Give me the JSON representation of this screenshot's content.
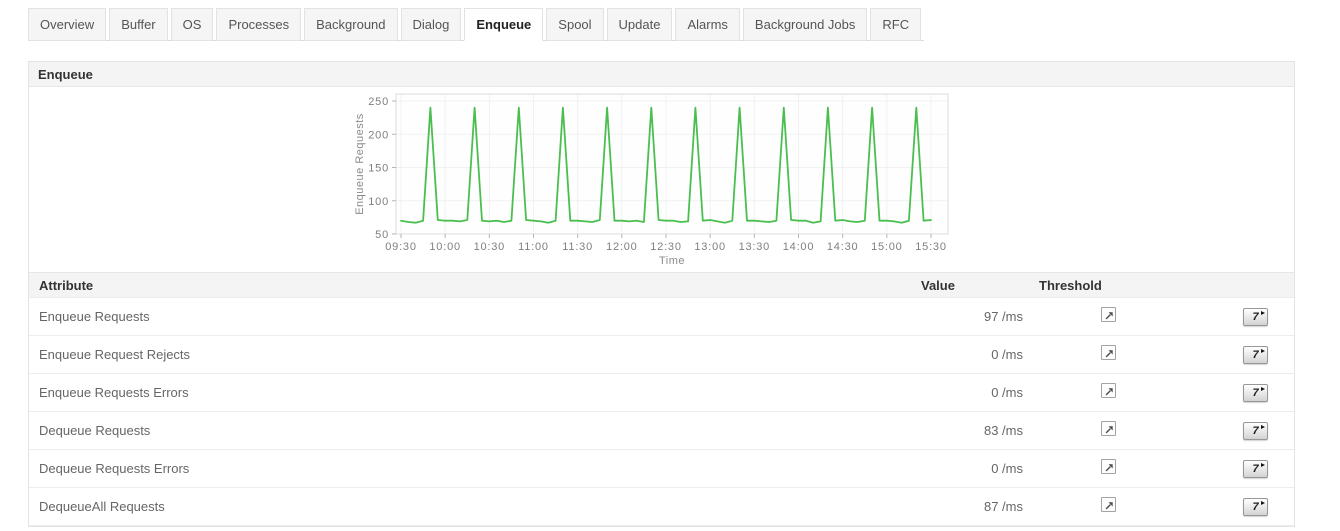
{
  "tabs": {
    "items": [
      {
        "label": "Overview",
        "active": false
      },
      {
        "label": "Buffer",
        "active": false
      },
      {
        "label": "OS",
        "active": false
      },
      {
        "label": "Processes",
        "active": false
      },
      {
        "label": "Background",
        "active": false
      },
      {
        "label": "Dialog",
        "active": false
      },
      {
        "label": "Enqueue",
        "active": true
      },
      {
        "label": "Spool",
        "active": false
      },
      {
        "label": "Update",
        "active": false
      },
      {
        "label": "Alarms",
        "active": false
      },
      {
        "label": "Background Jobs",
        "active": false
      },
      {
        "label": "RFC",
        "active": false
      }
    ]
  },
  "section": {
    "title": "Enqueue"
  },
  "chart_data": {
    "type": "line",
    "title": "",
    "xlabel": "Time",
    "ylabel": "Enqueue Requests",
    "ylim": [
      50,
      260
    ],
    "yticks": [
      50,
      100,
      150,
      200,
      250
    ],
    "xticks": [
      "09:30",
      "10:00",
      "10:30",
      "11:00",
      "11:30",
      "12:00",
      "12:30",
      "13:00",
      "13:30",
      "14:00",
      "14:30",
      "15:00",
      "15:30"
    ],
    "grid": true,
    "legend": false,
    "line_color": "#4abf4f",
    "series": [
      {
        "name": "Enqueue Requests",
        "x": [
          "09:30",
          "09:35",
          "09:40",
          "09:45",
          "09:50",
          "09:55",
          "10:00",
          "10:05",
          "10:10",
          "10:15",
          "10:20",
          "10:25",
          "10:30",
          "10:35",
          "10:40",
          "10:45",
          "10:50",
          "10:55",
          "11:00",
          "11:05",
          "11:10",
          "11:15",
          "11:20",
          "11:25",
          "11:30",
          "11:35",
          "11:40",
          "11:45",
          "11:50",
          "11:55",
          "12:00",
          "12:05",
          "12:10",
          "12:15",
          "12:20",
          "12:25",
          "12:30",
          "12:35",
          "12:40",
          "12:45",
          "12:50",
          "12:55",
          "13:00",
          "13:05",
          "13:10",
          "13:15",
          "13:20",
          "13:25",
          "13:30",
          "13:35",
          "13:40",
          "13:45",
          "13:50",
          "13:55",
          "14:00",
          "14:05",
          "14:10",
          "14:15",
          "14:20",
          "14:25",
          "14:30",
          "14:35",
          "14:40",
          "14:45",
          "14:50",
          "14:55",
          "15:00",
          "15:05",
          "15:10",
          "15:15",
          "15:20",
          "15:25",
          "15:30"
        ],
        "y": [
          70,
          68,
          67,
          70,
          240,
          71,
          70,
          70,
          69,
          71,
          240,
          70,
          69,
          70,
          68,
          70,
          240,
          71,
          70,
          69,
          67,
          70,
          240,
          70,
          70,
          69,
          68,
          71,
          240,
          70,
          70,
          69,
          70,
          68,
          240,
          71,
          70,
          70,
          68,
          69,
          240,
          70,
          71,
          69,
          67,
          70,
          240,
          70,
          70,
          69,
          68,
          70,
          240,
          71,
          70,
          70,
          67,
          69,
          240,
          70,
          71,
          69,
          68,
          70,
          240,
          70,
          70,
          69,
          67,
          70,
          240,
          70,
          71
        ]
      }
    ]
  },
  "table": {
    "headers": {
      "attribute": "Attribute",
      "value": "Value",
      "threshold": "Threshold",
      "actions": ""
    },
    "rows": [
      {
        "attribute": "Enqueue Requests",
        "value": "97 /ms"
      },
      {
        "attribute": "Enqueue Request Rejects",
        "value": "0 /ms"
      },
      {
        "attribute": "Enqueue Requests Errors",
        "value": "0 /ms"
      },
      {
        "attribute": "Dequeue Requests",
        "value": "83 /ms"
      },
      {
        "attribute": "Dequeue Requests Errors",
        "value": "0 /ms"
      },
      {
        "attribute": "DequeueAll Requests",
        "value": "87 /ms"
      }
    ],
    "action_button_label": "7"
  }
}
